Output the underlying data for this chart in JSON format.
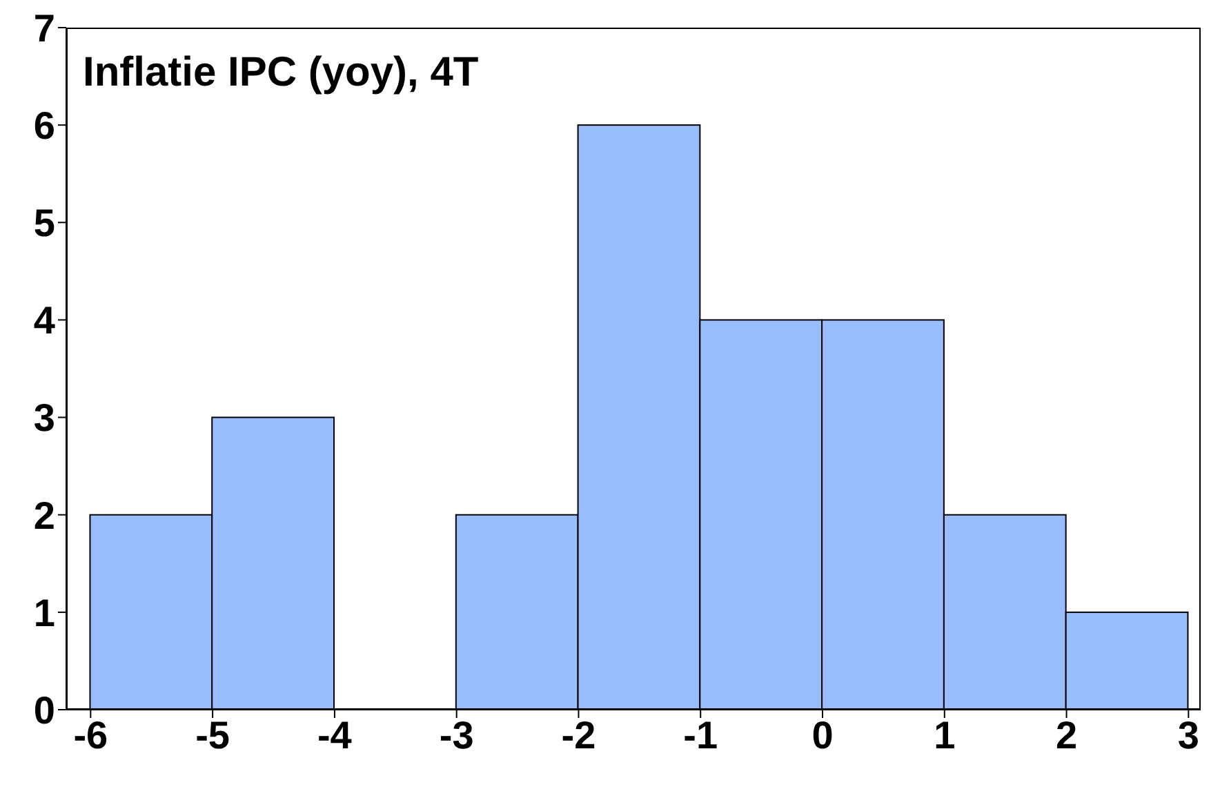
{
  "chart_data": {
    "type": "histogram",
    "title": "Inflatie IPC (yoy), 4T",
    "bins": [
      -6,
      -5,
      -4,
      -3,
      -2,
      -1,
      0,
      1,
      2,
      3
    ],
    "values": [
      2,
      3,
      0,
      2,
      6,
      4,
      4,
      2,
      1
    ],
    "color": "#98bdfd",
    "xlim": [
      -6.2,
      3.1
    ],
    "xticks": [
      -6,
      -5,
      -4,
      -3,
      -2,
      -1,
      0,
      1,
      2,
      3
    ],
    "ylim": [
      0,
      7
    ],
    "yticks": [
      0,
      1,
      2,
      3,
      4,
      5,
      6,
      7
    ]
  }
}
